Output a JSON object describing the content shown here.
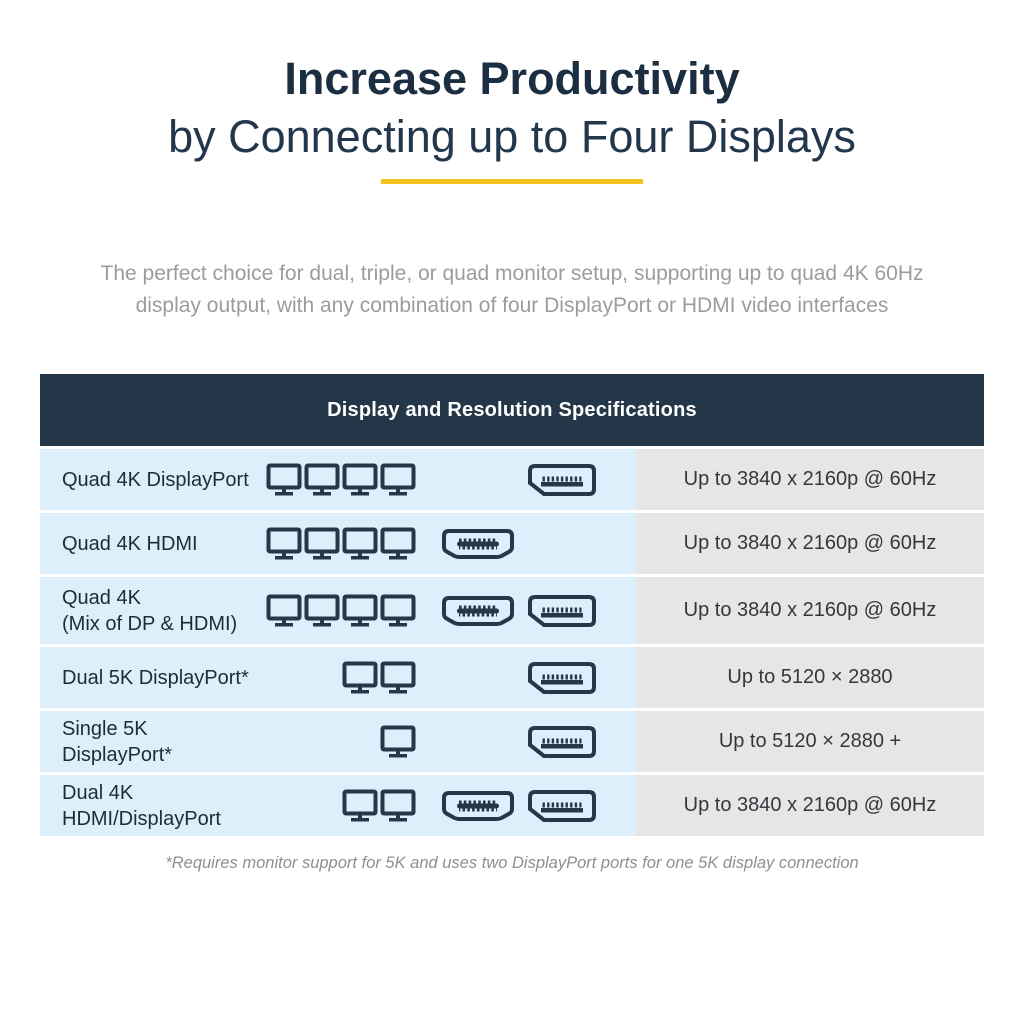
{
  "header": {
    "title_line1": "Increase Productivity",
    "title_line2": "by Connecting up to Four Displays",
    "description_line1": "The perfect choice for dual, triple, or quad monitor setup, supporting up to quad 4K 60Hz",
    "description_line2": "display output, with any combination of four DisplayPort or HDMI video interfaces"
  },
  "table": {
    "header": "Display and Resolution Specifications",
    "rows": [
      {
        "label": "Quad 4K DisplayPort",
        "label_line2": "",
        "monitor_count": 4,
        "connectors": [
          "displayport"
        ],
        "resolution": "Up to 3840 x 2160p @ 60Hz"
      },
      {
        "label": "Quad 4K HDMI",
        "label_line2": "",
        "monitor_count": 4,
        "connectors": [
          "hdmi"
        ],
        "resolution": "Up to 3840 x 2160p @ 60Hz"
      },
      {
        "label": "Quad 4K",
        "label_line2": "(Mix of DP & HDMI)",
        "monitor_count": 4,
        "connectors": [
          "hdmi",
          "displayport"
        ],
        "resolution": "Up to 3840 x 2160p @ 60Hz"
      },
      {
        "label": "Dual 5K DisplayPort*",
        "label_line2": "",
        "monitor_count": 2,
        "connectors": [
          "displayport"
        ],
        "resolution": "Up to 5120 × 2880"
      },
      {
        "label": "Single 5K DisplayPort*",
        "label_line2": "",
        "monitor_count": 1,
        "connectors": [
          "displayport"
        ],
        "resolution": "Up to 5120 × 2880 +"
      },
      {
        "label": "Dual 4K HDMI/DisplayPort",
        "label_line2": "",
        "monitor_count": 2,
        "connectors": [
          "hdmi",
          "displayport"
        ],
        "resolution": "Up to 3840 x 2160p @ 60Hz"
      }
    ]
  },
  "footnote": "*Requires monitor support for 5K and uses two DisplayPort ports for one 5K display connection",
  "icons": {
    "monitor": "monitor-icon",
    "hdmi": "hdmi-connector-icon",
    "displayport": "displayport-connector-icon"
  },
  "colors": {
    "navy_header": "#233749",
    "title_navy": "#1c2f42",
    "accent_yellow": "#f5c11c",
    "row_blue": "#ddeffb",
    "row_gray": "#e6e6e6",
    "description_gray": "#9c9c9c"
  }
}
